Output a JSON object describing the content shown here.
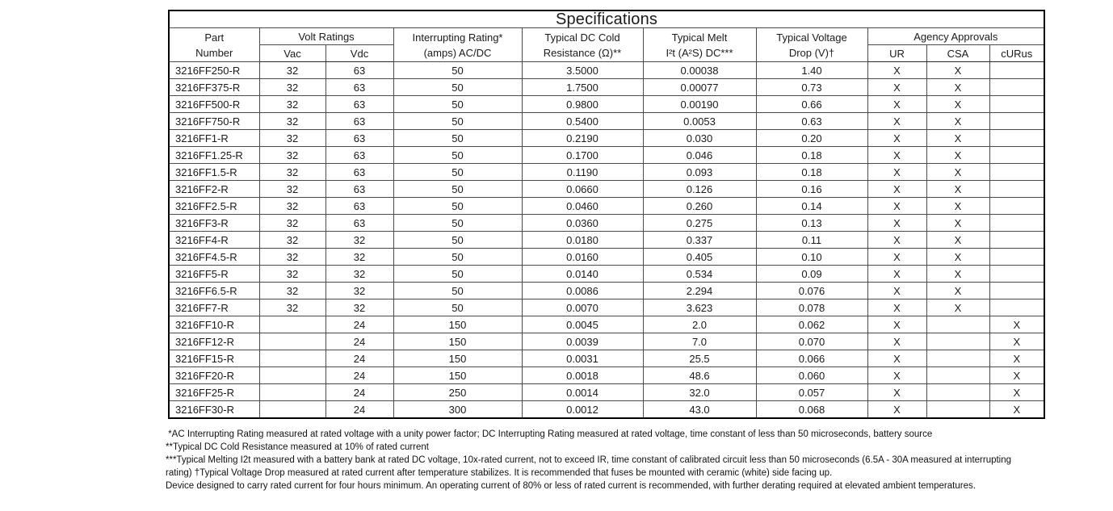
{
  "title": "Specifications",
  "colors": {
    "text": "#1a1a1a",
    "border": "#000000",
    "background": "#ffffff"
  },
  "table": {
    "header": {
      "part": {
        "line1": "Part",
        "line2": "Number"
      },
      "volt_group": "Volt Ratings",
      "vac": "Vac",
      "vdc": "Vdc",
      "interrupting": {
        "line1": "Interrupting Rating*",
        "line2": "(amps) AC/DC"
      },
      "resistance": {
        "line1": "Typical DC Cold",
        "line2": "Resistance (Ω)**"
      },
      "melt": {
        "line1": "Typical Melt",
        "line2": "I²t (A²S) DC***"
      },
      "drop": {
        "line1": "Typical Voltage",
        "line2": "Drop (V)†"
      },
      "agency_group": "Agency Approvals",
      "ur": "UR",
      "csa": "CSA",
      "curus": "cURus"
    },
    "rows": [
      [
        "3216FF250-R",
        "32",
        "63",
        "50",
        "3.5000",
        "0.00038",
        "1.40",
        "X",
        "X",
        ""
      ],
      [
        "3216FF375-R",
        "32",
        "63",
        "50",
        "1.7500",
        "0.00077",
        "0.73",
        "X",
        "X",
        ""
      ],
      [
        "3216FF500-R",
        "32",
        "63",
        "50",
        "0.9800",
        "0.00190",
        "0.66",
        "X",
        "X",
        ""
      ],
      [
        "3216FF750-R",
        "32",
        "63",
        "50",
        "0.5400",
        "0.0053",
        "0.63",
        "X",
        "X",
        ""
      ],
      [
        "3216FF1-R",
        "32",
        "63",
        "50",
        "0.2190",
        "0.030",
        "0.20",
        "X",
        "X",
        ""
      ],
      [
        "3216FF1.25-R",
        "32",
        "63",
        "50",
        "0.1700",
        "0.046",
        "0.18",
        "X",
        "X",
        ""
      ],
      [
        "3216FF1.5-R",
        "32",
        "63",
        "50",
        "0.1190",
        "0.093",
        "0.18",
        "X",
        "X",
        ""
      ],
      [
        "3216FF2-R",
        "32",
        "63",
        "50",
        "0.0660",
        "0.126",
        "0.16",
        "X",
        "X",
        ""
      ],
      [
        "3216FF2.5-R",
        "32",
        "63",
        "50",
        "0.0460",
        "0.260",
        "0.14",
        "X",
        "X",
        ""
      ],
      [
        "3216FF3-R",
        "32",
        "63",
        "50",
        "0.0360",
        "0.275",
        "0.13",
        "X",
        "X",
        ""
      ],
      [
        "3216FF4-R",
        "32",
        "32",
        "50",
        "0.0180",
        "0.337",
        "0.11",
        "X",
        "X",
        ""
      ],
      [
        "3216FF4.5-R",
        "32",
        "32",
        "50",
        "0.0160",
        "0.405",
        "0.10",
        "X",
        "X",
        ""
      ],
      [
        "3216FF5-R",
        "32",
        "32",
        "50",
        "0.0140",
        "0.534",
        "0.09",
        "X",
        "X",
        ""
      ],
      [
        "3216FF6.5-R",
        "32",
        "32",
        "50",
        "0.0086",
        "2.294",
        "0.076",
        "X",
        "X",
        ""
      ],
      [
        "3216FF7-R",
        "32",
        "32",
        "50",
        "0.0070",
        "3.623",
        "0.078",
        "X",
        "X",
        ""
      ],
      [
        "3216FF10-R",
        "",
        "24",
        "150",
        "0.0045",
        "2.0",
        "0.062",
        "X",
        "",
        "X"
      ],
      [
        "3216FF12-R",
        "",
        "24",
        "150",
        "0.0039",
        "7.0",
        "0.070",
        "X",
        "",
        "X"
      ],
      [
        "3216FF15-R",
        "",
        "24",
        "150",
        "0.0031",
        "25.5",
        "0.066",
        "X",
        "",
        "X"
      ],
      [
        "3216FF20-R",
        "",
        "24",
        "150",
        "0.0018",
        "48.6",
        "0.060",
        "X",
        "",
        "X"
      ],
      [
        "3216FF25-R",
        "",
        "24",
        "250",
        "0.0014",
        "32.0",
        "0.057",
        "X",
        "",
        "X"
      ],
      [
        "3216FF30-R",
        "",
        "24",
        "300",
        "0.0012",
        "43.0",
        "0.068",
        "X",
        "",
        "X"
      ]
    ]
  },
  "footnotes": [
    " *AC Interrupting Rating measured at rated voltage with a unity power factor; DC Interrupting Rating measured at rated voltage, time constant of less than 50 microseconds, battery source",
    "**Typical DC Cold Resistance measured at 10% of rated current",
    "***Typical Melting I2t measured with a battery bank at rated DC voltage, 10x-rated current, not to exceed IR, time constant of calibrated circuit less than 50 microseconds (6.5A - 30A measured at interrupting",
    "rating) †Typical Voltage Drop measured at rated current after temperature stabilizes. It is recommended that fuses be mounted with ceramic (white) side facing up.",
    "Device designed to carry rated current for four hours minimum. An operating current of 80% or less of rated current is recommended, with further derating required at elevated ambient temperatures."
  ]
}
